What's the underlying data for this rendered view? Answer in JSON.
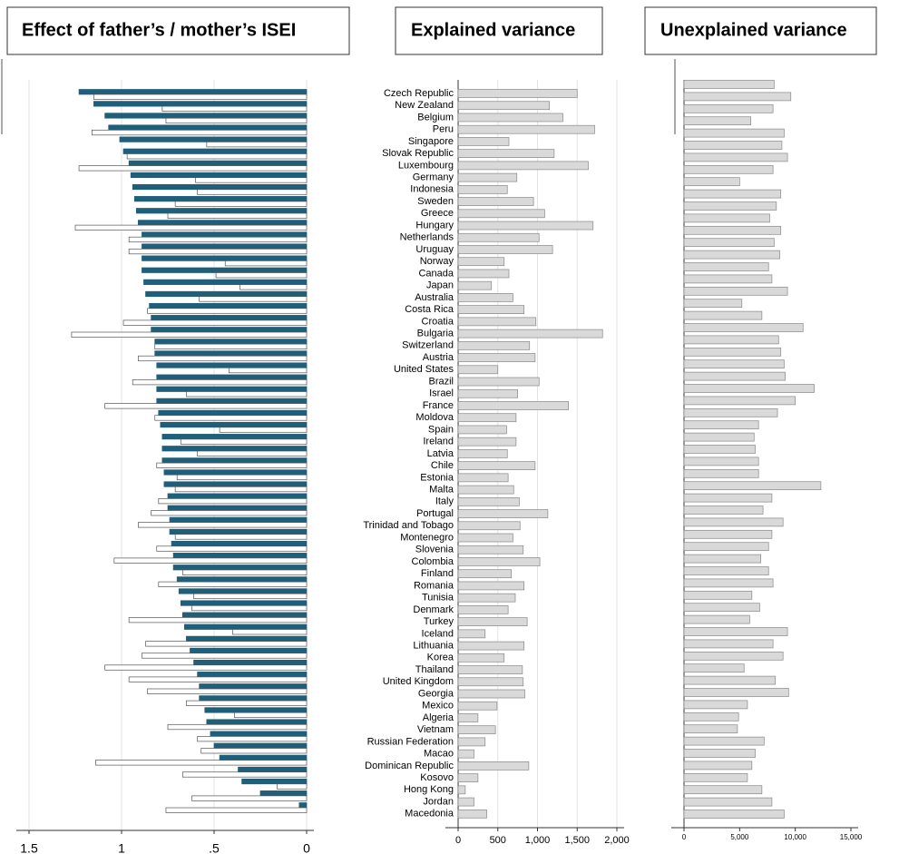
{
  "chart_data": [
    {
      "type": "bar",
      "orientation": "horizontal",
      "title": "Effect of father’s / mother’s ISEI",
      "series": [
        {
          "color": "#1f5f7a",
          "values": [
            1.23,
            1.15,
            1.09,
            1.07,
            1.01,
            0.99,
            0.96,
            0.95,
            0.94,
            0.93,
            0.92,
            0.91,
            0.89,
            0.89,
            0.89,
            0.89,
            0.88,
            0.87,
            0.85,
            0.84,
            0.84,
            0.82,
            0.82,
            0.81,
            0.81,
            0.81,
            0.81,
            0.8,
            0.79,
            0.78,
            0.78,
            0.78,
            0.77,
            0.77,
            0.75,
            0.75,
            0.74,
            0.74,
            0.73,
            0.72,
            0.72,
            0.7,
            0.69,
            0.68,
            0.67,
            0.66,
            0.65,
            0.63,
            0.61,
            0.59,
            0.58,
            0.58,
            0.55,
            0.54,
            0.52,
            0.5,
            0.47,
            0.37,
            0.35,
            0.25,
            0.04
          ]
        },
        {
          "color": "#ffffff",
          "values": [
            1.15,
            0.78,
            0.76,
            1.16,
            0.54,
            0.97,
            1.23,
            0.6,
            0.59,
            0.71,
            0.75,
            1.25,
            0.96,
            0.96,
            0.44,
            0.49,
            0.36,
            0.58,
            0.86,
            0.99,
            1.27,
            0.82,
            0.91,
            0.42,
            0.94,
            0.65,
            1.09,
            0.82,
            0.47,
            0.68,
            0.59,
            0.81,
            0.7,
            0.71,
            0.8,
            0.84,
            0.91,
            0.71,
            0.81,
            1.04,
            0.67,
            0.8,
            0.61,
            0.62,
            0.96,
            0.4,
            0.87,
            0.89,
            1.09,
            0.96,
            0.86,
            0.65,
            0.39,
            0.75,
            0.59,
            0.57,
            1.14,
            0.67,
            0.16,
            0.62,
            0.76
          ]
        }
      ],
      "xlim": [
        1.5,
        0
      ],
      "xticks": [
        1.5,
        1,
        {
          "value": 0.5,
          "label": ".5"
        },
        0
      ],
      "grid": true
    },
    {
      "type": "bar",
      "orientation": "horizontal",
      "title": "Explained variance",
      "categories": [
        "Czech Republic",
        "New Zealand",
        "Belgium",
        "Peru",
        "Singapore",
        "Slovak Republic",
        "Luxembourg",
        "Germany",
        "Indonesia",
        "Sweden",
        "Greece",
        "Hungary",
        "Netherlands",
        "Uruguay",
        "Norway",
        "Canada",
        "Japan",
        "Australia",
        "Costa Rica",
        "Croatia",
        "Bulgaria",
        "Switzerland",
        "Austria",
        "United States",
        "Brazil",
        "Israel",
        "France",
        "Moldova",
        "Spain",
        "Ireland",
        "Latvia",
        "Chile",
        "Estonia",
        "Malta",
        "Italy",
        "Portugal",
        "Trinidad and Tobago",
        "Montenegro",
        "Slovenia",
        "Colombia",
        "Finland",
        "Romania",
        "Tunisia",
        "Denmark",
        "Turkey",
        "Iceland",
        "Lithuania",
        "Korea",
        "Thailand",
        "United Kingdom",
        "Georgia",
        "Mexico",
        "Algeria",
        "Vietnam",
        "Russian Federation",
        "Macao",
        "Dominican Republic",
        "Kosovo",
        "Hong Kong",
        "Jordan",
        "Macedonia"
      ],
      "values": [
        1500,
        1150,
        1320,
        1720,
        640,
        1210,
        1640,
        740,
        620,
        950,
        1090,
        1700,
        1020,
        1190,
        580,
        640,
        420,
        690,
        830,
        980,
        1820,
        900,
        970,
        500,
        1020,
        750,
        1390,
        730,
        610,
        730,
        620,
        970,
        630,
        700,
        770,
        1130,
        780,
        690,
        820,
        1030,
        670,
        830,
        720,
        630,
        870,
        340,
        830,
        580,
        810,
        820,
        840,
        490,
        250,
        470,
        340,
        200,
        890,
        250,
        90,
        200,
        360
      ],
      "color": "#d9d9d9",
      "xlim": [
        0,
        2000
      ],
      "xticks": [
        0,
        500,
        {
          "value": 1000,
          "label": "1,000"
        },
        {
          "value": 1500,
          "label": "1,500"
        },
        {
          "value": 2000,
          "label": "2,000"
        }
      ],
      "grid": true
    },
    {
      "type": "bar",
      "orientation": "horizontal",
      "title": "Unexplained variance",
      "values": [
        8100,
        9600,
        8000,
        6000,
        9000,
        8800,
        9300,
        8000,
        5000,
        8700,
        8300,
        7700,
        8700,
        8100,
        8600,
        7600,
        7900,
        9300,
        5200,
        7000,
        10700,
        8500,
        8700,
        9000,
        9100,
        11700,
        10000,
        8400,
        6700,
        6300,
        6400,
        6700,
        6700,
        12300,
        7900,
        7100,
        8900,
        7900,
        7600,
        6900,
        7600,
        8000,
        6100,
        6800,
        5900,
        9300,
        8000,
        8900,
        5400,
        8200,
        9400,
        5700,
        4900,
        4800,
        7200,
        6400,
        6100,
        5700,
        7000,
        7900,
        9000
      ],
      "color": "#d9d9d9",
      "xlim": [
        0,
        15000
      ],
      "xticks": [
        0,
        {
          "value": 5000,
          "label": "5,000"
        },
        {
          "value": 10000,
          "label": "10,000"
        },
        {
          "value": 15000,
          "label": "15,000"
        }
      ],
      "grid": false
    }
  ]
}
